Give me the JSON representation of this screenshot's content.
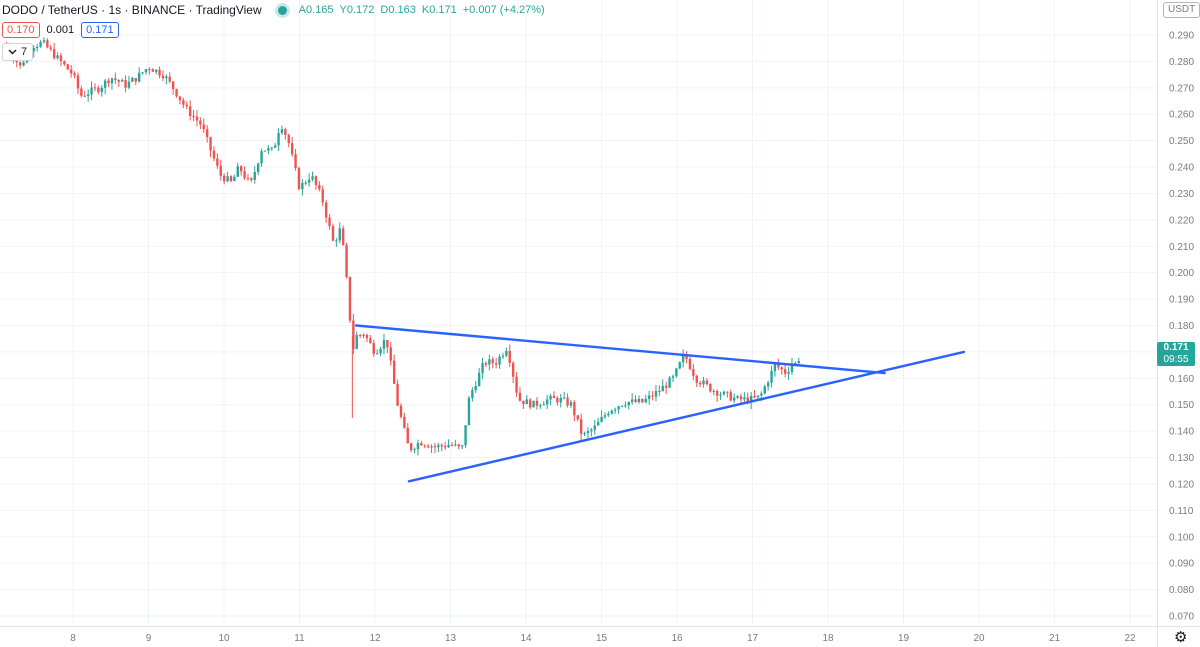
{
  "legend": {
    "symbol": "DODO / TetherUS · 1s · BINANCE · TradingView",
    "open": "A0.165",
    "high": "Y0.172",
    "low": "D0.163",
    "close": "K0.171",
    "change": "+0.007 (+4.27%)"
  },
  "trade": {
    "sell": "0.170",
    "spread": "0.001",
    "buy": "0.171"
  },
  "indicator_toggle": {
    "label": "7"
  },
  "currency": "USDT",
  "last_price": {
    "price": "0.171",
    "countdown": "09:55"
  },
  "colors": {
    "up": "#26a69a",
    "down": "#ef5350",
    "trendline": "#2962ff",
    "grid": "#f0f3fa",
    "text": "#787b86"
  },
  "icons": [
    "collapse-chevron-icon",
    "settings-gear-icon"
  ],
  "chart_data": {
    "type": "candlestick",
    "x_axis_labels": [
      "8",
      "9",
      "10",
      "11",
      "12",
      "13",
      "14",
      "15",
      "16",
      "17",
      "18",
      "19",
      "20",
      "21",
      "22"
    ],
    "y_axis_labels": [
      "0.070",
      "0.080",
      "0.090",
      "0.100",
      "0.110",
      "0.120",
      "0.130",
      "0.140",
      "0.150",
      "0.160",
      "0.170",
      "0.180",
      "0.190",
      "0.200",
      "0.210",
      "0.220",
      "0.230",
      "0.240",
      "0.250",
      "0.260",
      "0.270",
      "0.280",
      "0.290"
    ],
    "ylim": [
      0.07,
      0.29
    ],
    "xlim": [
      7.1,
      22.0
    ],
    "path": [
      [
        7.12,
        0.286
      ],
      [
        7.3,
        0.278
      ],
      [
        7.45,
        0.286
      ],
      [
        7.6,
        0.287
      ],
      [
        7.8,
        0.281
      ],
      [
        8.0,
        0.275
      ],
      [
        8.1,
        0.267
      ],
      [
        8.35,
        0.27
      ],
      [
        8.5,
        0.274
      ],
      [
        8.7,
        0.271
      ],
      [
        8.85,
        0.274
      ],
      [
        9.0,
        0.278
      ],
      [
        9.2,
        0.275
      ],
      [
        9.35,
        0.269
      ],
      [
        9.5,
        0.262
      ],
      [
        9.7,
        0.256
      ],
      [
        9.8,
        0.248
      ],
      [
        9.95,
        0.237
      ],
      [
        10.1,
        0.234
      ],
      [
        10.2,
        0.24
      ],
      [
        10.35,
        0.233
      ],
      [
        10.5,
        0.247
      ],
      [
        10.65,
        0.246
      ],
      [
        10.75,
        0.257
      ],
      [
        10.85,
        0.25
      ],
      [
        11.0,
        0.232
      ],
      [
        11.15,
        0.237
      ],
      [
        11.3,
        0.228
      ],
      [
        11.45,
        0.211
      ],
      [
        11.55,
        0.217
      ],
      [
        11.65,
        0.19
      ],
      [
        11.7,
        0.17
      ],
      [
        11.75,
        0.176
      ],
      [
        11.85,
        0.177
      ],
      [
        12.0,
        0.17
      ],
      [
        12.15,
        0.175
      ],
      [
        12.3,
        0.15
      ],
      [
        12.45,
        0.133
      ],
      [
        12.6,
        0.136
      ],
      [
        12.8,
        0.134
      ],
      [
        13.0,
        0.135
      ],
      [
        13.15,
        0.133
      ],
      [
        13.25,
        0.153
      ],
      [
        13.45,
        0.166
      ],
      [
        13.6,
        0.166
      ],
      [
        13.75,
        0.172
      ],
      [
        13.9,
        0.152
      ],
      [
        14.1,
        0.15
      ],
      [
        14.3,
        0.152
      ],
      [
        14.45,
        0.152
      ],
      [
        14.6,
        0.15
      ],
      [
        14.75,
        0.138
      ],
      [
        14.9,
        0.141
      ],
      [
        15.1,
        0.148
      ],
      [
        15.3,
        0.151
      ],
      [
        15.55,
        0.151
      ],
      [
        15.75,
        0.155
      ],
      [
        15.95,
        0.16
      ],
      [
        16.1,
        0.169
      ],
      [
        16.25,
        0.16
      ],
      [
        16.45,
        0.156
      ],
      [
        16.6,
        0.154
      ],
      [
        16.8,
        0.152
      ],
      [
        17.0,
        0.152
      ],
      [
        17.1,
        0.153
      ],
      [
        17.3,
        0.165
      ],
      [
        17.45,
        0.162
      ],
      [
        17.52,
        0.166
      ],
      [
        17.6,
        0.165
      ],
      [
        17.63,
        0.171
      ]
    ],
    "trendlines": [
      {
        "from": [
          11.75,
          0.18
        ],
        "to": [
          18.75,
          0.162
        ]
      },
      {
        "from": [
          12.45,
          0.121
        ],
        "to": [
          19.8,
          0.17
        ]
      }
    ]
  }
}
